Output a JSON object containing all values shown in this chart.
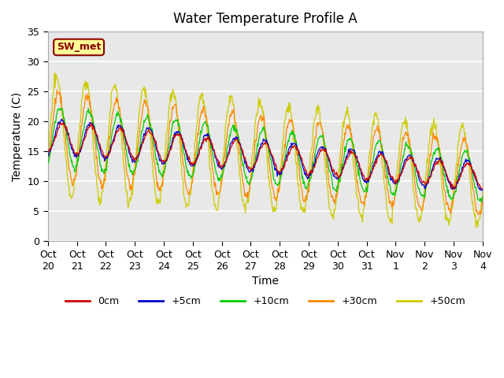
{
  "title": "Water Temperature Profile A",
  "xlabel": "Time",
  "ylabel": "Temperature (C)",
  "ylim": [
    0,
    35
  ],
  "annotation": "SW_met",
  "annotation_color": "#8B0000",
  "annotation_bg": "#FFFF99",
  "annotation_border": "#8B0000",
  "series_labels": [
    "0cm",
    "+5cm",
    "+10cm",
    "+30cm",
    "+50cm"
  ],
  "series_colors": [
    "#CC0000",
    "#0000CC",
    "#00CC00",
    "#FF8800",
    "#CCCC00"
  ],
  "xtick_labels": [
    "Oct 20",
    "Oct 21",
    "Oct 22",
    "Oct 23",
    "Oct 24",
    "Oct 25",
    "Oct 26",
    "Oct 27",
    "Oct 28",
    "Oct 29",
    "Oct 30",
    "Oct 31",
    "Nov 1",
    "Nov 2",
    "Nov 3",
    "Nov 4"
  ],
  "bg_color": "#FFFFFF",
  "plot_bg_color": "#E8E8E8",
  "grid_color": "#FFFFFF",
  "yticks": [
    0,
    5,
    10,
    15,
    20,
    25,
    30,
    35
  ]
}
